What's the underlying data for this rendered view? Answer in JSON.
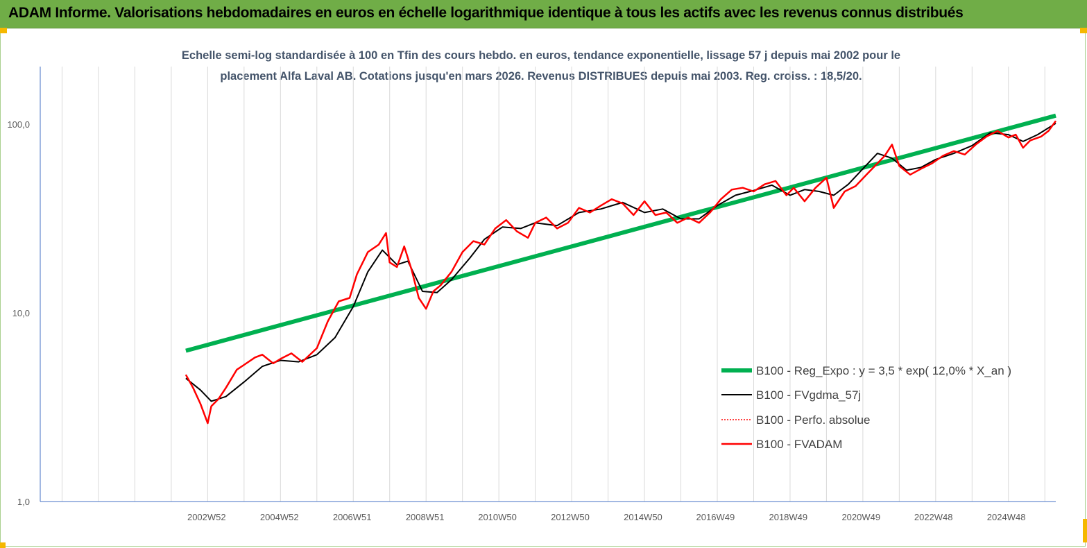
{
  "header": {
    "title": "ADAM Informe. Valorisations hebdomadaires en euros en échelle logarithmique identique à tous les actifs avec les revenus connus distribués"
  },
  "chart_data": {
    "type": "line",
    "title_line1": "Echelle semi-log standardisée à 100 en Tfin des cours hebdo. en euros, tendance exponentielle, lissage 57 j depuis mai 2002 pour le",
    "title_line2": "placement Alfa Laval AB. Cotations jusqu'en mars 2026. Revenus DISTRIBUES depuis mai 2003. Reg. croiss. : 18,5/20.",
    "y_scale": "log",
    "ylim": [
      1,
      100
    ],
    "y_ticks": [
      {
        "value": 1,
        "label": "1,0"
      },
      {
        "value": 10,
        "label": "10,0"
      },
      {
        "value": 100,
        "label": "100,0"
      }
    ],
    "xlim": [
      1998.4,
      2026.3
    ],
    "x_ticks": [
      {
        "value": 2002.97,
        "label": "2002W52"
      },
      {
        "value": 2004.97,
        "label": "2004W52"
      },
      {
        "value": 2006.97,
        "label": "2006W51"
      },
      {
        "value": 2008.97,
        "label": "2008W51"
      },
      {
        "value": 2010.96,
        "label": "2010W50"
      },
      {
        "value": 2012.96,
        "label": "2012W50"
      },
      {
        "value": 2014.96,
        "label": "2014W50"
      },
      {
        "value": 2016.95,
        "label": "2016W49"
      },
      {
        "value": 2018.95,
        "label": "2018W49"
      },
      {
        "value": 2020.95,
        "label": "2020W49"
      },
      {
        "value": 2022.94,
        "label": "2022W48"
      },
      {
        "value": 2024.94,
        "label": "2024W48"
      }
    ],
    "grid": "vertical",
    "legend_position": "bottom-right",
    "colors": {
      "reg_expo": "#00b050",
      "fvgdma": "#000000",
      "perfo": "#ff0000",
      "fvadam": "#ff0000",
      "axis": "#4472c4",
      "grid": "#d9d9d9"
    },
    "series": [
      {
        "name": "B100 - Reg_Expo : y = 3,5 * exp( 12,0% *  X_an )",
        "key": "reg_expo",
        "x": [
          2002.4,
          2026.3
        ],
        "y": [
          6.3,
          111
        ]
      },
      {
        "name": "B100 - FVgdma_57j",
        "key": "fvgdma",
        "x": [
          2002.4,
          2002.8,
          2003.1,
          2003.5,
          2004.0,
          2004.5,
          2005.0,
          2005.5,
          2006.0,
          2006.5,
          2007.0,
          2007.4,
          2007.8,
          2008.2,
          2008.5,
          2008.9,
          2009.3,
          2009.7,
          2010.2,
          2010.6,
          2011.1,
          2011.6,
          2012.0,
          2012.6,
          2013.2,
          2013.8,
          2014.4,
          2015.0,
          2015.5,
          2016.0,
          2016.5,
          2017.0,
          2017.5,
          2018.0,
          2018.5,
          2019.0,
          2019.4,
          2019.8,
          2020.2,
          2020.6,
          2021.0,
          2021.4,
          2021.8,
          2022.2,
          2022.6,
          2023.0,
          2023.5,
          2024.0,
          2024.5,
          2025.0,
          2025.4,
          2025.8,
          2026.3
        ],
        "y": [
          4.5,
          3.9,
          3.4,
          3.6,
          4.3,
          5.2,
          5.6,
          5.5,
          6.0,
          7.4,
          10.8,
          16.5,
          21.5,
          18.0,
          18.8,
          13.0,
          12.8,
          15.0,
          19.5,
          24.5,
          28.5,
          28.0,
          30.0,
          29.0,
          34.0,
          35.5,
          38.5,
          34.0,
          35.5,
          31.5,
          31.5,
          37.0,
          42.0,
          44.5,
          47.5,
          42.0,
          45.0,
          44.0,
          42.0,
          48.0,
          58.0,
          70.0,
          66.0,
          57.0,
          59.0,
          65.0,
          70.0,
          77.0,
          90.0,
          88.0,
          81.0,
          88.0,
          101.0
        ]
      },
      {
        "name": "B100 - Perfo. absolue",
        "key": "perfo",
        "x": [],
        "y": []
      },
      {
        "name": "B100 - FVADAM",
        "key": "fvadam",
        "x": [
          2002.4,
          2002.6,
          2002.8,
          2003.0,
          2003.1,
          2003.3,
          2003.5,
          2003.8,
          2004.0,
          2004.3,
          2004.5,
          2004.8,
          2005.0,
          2005.3,
          2005.6,
          2006.0,
          2006.3,
          2006.6,
          2006.9,
          2007.1,
          2007.4,
          2007.7,
          2007.9,
          2008.0,
          2008.2,
          2008.4,
          2008.6,
          2008.8,
          2009.0,
          2009.2,
          2009.4,
          2009.7,
          2010.0,
          2010.3,
          2010.6,
          2010.9,
          2011.2,
          2011.5,
          2011.8,
          2012.0,
          2012.3,
          2012.6,
          2012.9,
          2013.2,
          2013.5,
          2013.8,
          2014.1,
          2014.4,
          2014.7,
          2015.0,
          2015.3,
          2015.6,
          2015.9,
          2016.2,
          2016.5,
          2016.8,
          2017.1,
          2017.4,
          2017.7,
          2018.0,
          2018.3,
          2018.6,
          2018.9,
          2019.1,
          2019.4,
          2019.7,
          2020.0,
          2020.2,
          2020.5,
          2020.8,
          2021.1,
          2021.4,
          2021.6,
          2021.8,
          2022.0,
          2022.3,
          2022.6,
          2022.9,
          2023.2,
          2023.5,
          2023.8,
          2024.1,
          2024.4,
          2024.7,
          2025.0,
          2025.2,
          2025.4,
          2025.6,
          2025.9,
          2026.1,
          2026.3
        ],
        "y": [
          4.7,
          4.0,
          3.3,
          2.6,
          3.2,
          3.5,
          4.0,
          5.0,
          5.3,
          5.8,
          6.0,
          5.4,
          5.7,
          6.1,
          5.5,
          6.5,
          9.0,
          11.5,
          12.0,
          16.0,
          21.0,
          23.0,
          26.5,
          18.5,
          17.5,
          22.5,
          17.0,
          12.0,
          10.5,
          13.0,
          14.0,
          16.5,
          21.0,
          24.0,
          23.0,
          28.0,
          31.0,
          27.0,
          25.0,
          30.0,
          32.0,
          28.0,
          30.0,
          36.0,
          34.0,
          37.0,
          40.0,
          38.0,
          33.0,
          39.0,
          33.0,
          34.0,
          30.0,
          32.0,
          30.0,
          34.0,
          40.0,
          45.0,
          46.0,
          44.0,
          48.0,
          50.0,
          42.0,
          46.0,
          39.0,
          46.0,
          52.0,
          36.0,
          44.0,
          47.0,
          54.0,
          62.0,
          68.0,
          78.0,
          60.0,
          54.0,
          58.0,
          62.0,
          68.0,
          72.0,
          69.0,
          78.0,
          86.0,
          92.0,
          85.0,
          88.0,
          75.0,
          82.0,
          86.0,
          92.0,
          104.0
        ]
      }
    ]
  }
}
